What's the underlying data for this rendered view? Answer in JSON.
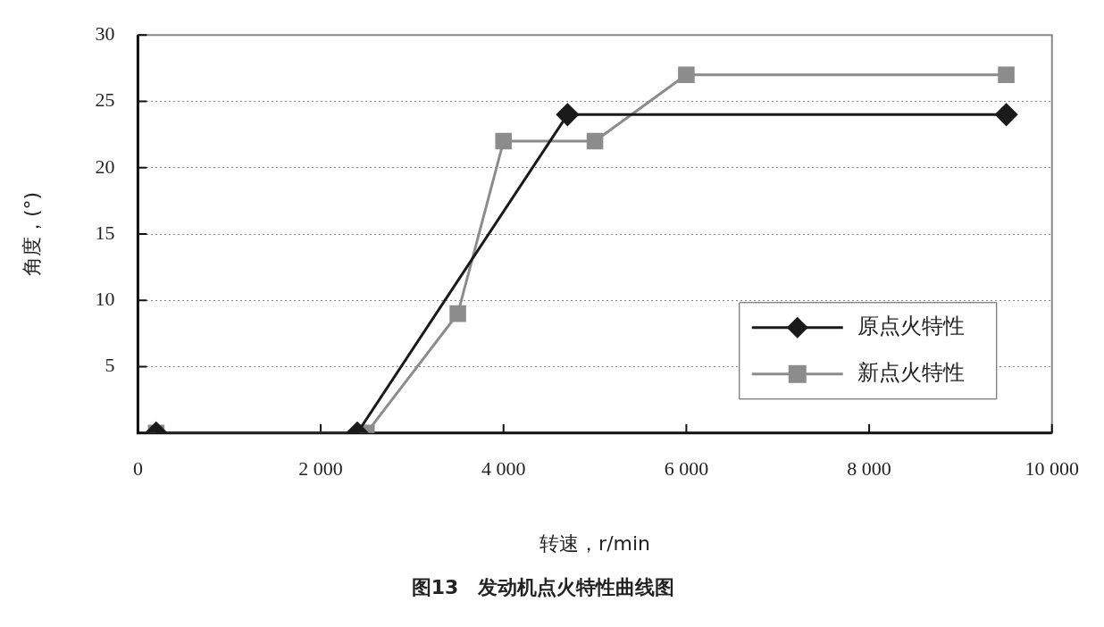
{
  "chart_data": {
    "type": "line",
    "title": "图13　发动机点火特性曲线图",
    "xlabel": "转速，r/min",
    "ylabel": "角度，(°)",
    "series": [
      {
        "name": "原点火特性",
        "color": "#1a1a1a",
        "marker": "diamond",
        "x": [
          200,
          2400,
          4700,
          9500
        ],
        "values": [
          0,
          0,
          24,
          24
        ]
      },
      {
        "name": "新点火特性",
        "color": "#8c8c8c",
        "marker": "square",
        "x": [
          200,
          2500,
          3500,
          4000,
          5000,
          6000,
          9500
        ],
        "values": [
          0,
          0,
          9,
          22,
          22,
          27,
          27
        ]
      }
    ],
    "xlim": [
      0,
      10000
    ],
    "xticks": [
      {
        "value": 0,
        "label": "0"
      },
      {
        "value": 2000,
        "label": "2 000"
      },
      {
        "value": 4000,
        "label": "4 000"
      },
      {
        "value": 6000,
        "label": "6 000"
      },
      {
        "value": 8000,
        "label": "8 000"
      },
      {
        "value": 10000,
        "label": "10 000"
      }
    ],
    "ylim": [
      0,
      30
    ],
    "yticks": [
      5,
      10,
      15,
      20,
      25,
      30
    ],
    "grid": "y",
    "legend": "bottom right",
    "line_style": "solid"
  }
}
